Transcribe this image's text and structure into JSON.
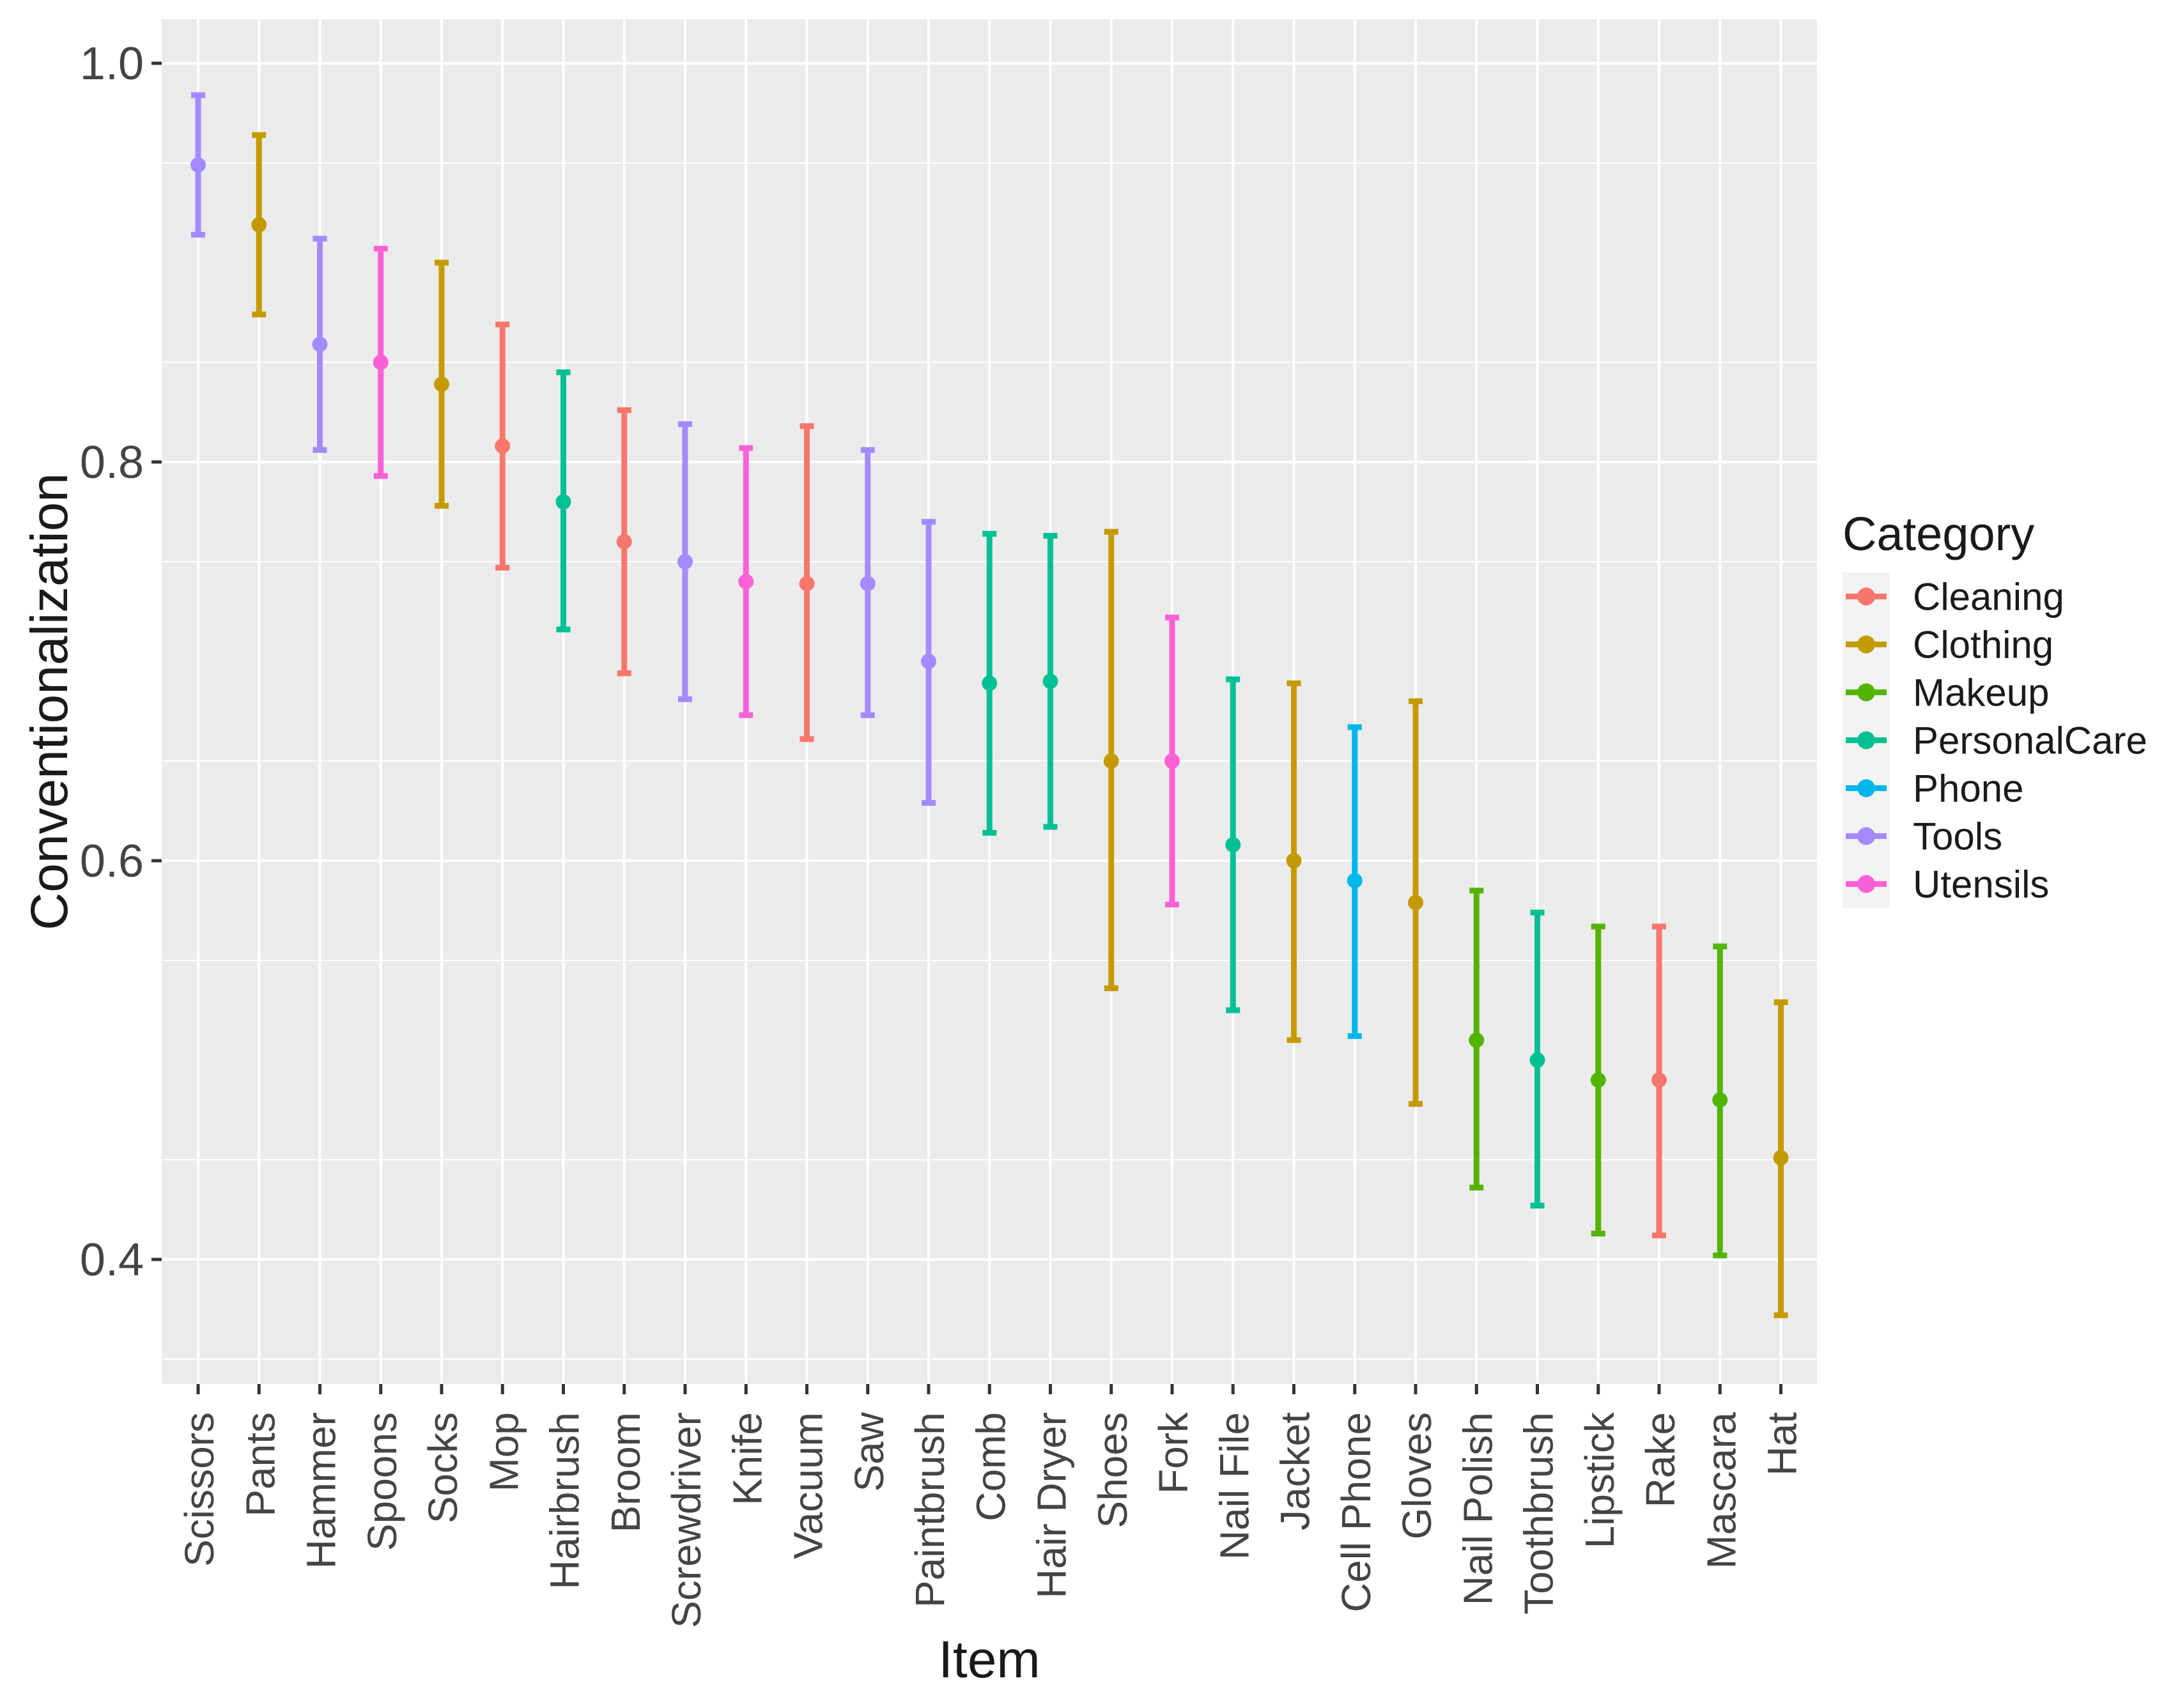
{
  "chart_data": {
    "type": "scatter",
    "subtype": "pointrange",
    "title": "",
    "xlabel": "Item",
    "ylabel": "Conventionalization",
    "legend_title": "Category",
    "legend_position": "right",
    "grid": true,
    "ylim": [
      0.3375,
      1.0221
    ],
    "yticks": [
      {
        "value": 1.0,
        "label": "1.0"
      },
      {
        "value": 0.8,
        "label": "0.8"
      },
      {
        "value": 0.6,
        "label": "0.6"
      },
      {
        "value": 0.4,
        "label": "0.4"
      }
    ],
    "yminor": [
      0.35,
      0.45,
      0.55,
      0.65,
      0.75,
      0.85,
      0.95
    ],
    "legend": [
      {
        "name": "Cleaning",
        "color": "#F8766D"
      },
      {
        "name": "Clothing",
        "color": "#C49A00"
      },
      {
        "name": "Makeup",
        "color": "#53B400"
      },
      {
        "name": "PersonalCare",
        "color": "#00C094"
      },
      {
        "name": "Phone",
        "color": "#00B6EB"
      },
      {
        "name": "Tools",
        "color": "#A58AFF"
      },
      {
        "name": "Utensils",
        "color": "#FB61D7"
      }
    ],
    "points": [
      {
        "item": "Scissors",
        "category": "Tools",
        "value": 0.949,
        "lo": 0.914,
        "hi": 0.984
      },
      {
        "item": "Pants",
        "category": "Clothing",
        "value": 0.919,
        "lo": 0.874,
        "hi": 0.964
      },
      {
        "item": "Hammer",
        "category": "Tools",
        "value": 0.859,
        "lo": 0.806,
        "hi": 0.912
      },
      {
        "item": "Spoons",
        "category": "Utensils",
        "value": 0.85,
        "lo": 0.793,
        "hi": 0.907
      },
      {
        "item": "Socks",
        "category": "Clothing",
        "value": 0.839,
        "lo": 0.778,
        "hi": 0.9
      },
      {
        "item": "Mop",
        "category": "Cleaning",
        "value": 0.808,
        "lo": 0.747,
        "hi": 0.869
      },
      {
        "item": "Hairbrush",
        "category": "PersonalCare",
        "value": 0.78,
        "lo": 0.716,
        "hi": 0.845
      },
      {
        "item": "Broom",
        "category": "Cleaning",
        "value": 0.76,
        "lo": 0.694,
        "hi": 0.826
      },
      {
        "item": "Screwdriver",
        "category": "Tools",
        "value": 0.75,
        "lo": 0.681,
        "hi": 0.819
      },
      {
        "item": "Knife",
        "category": "Utensils",
        "value": 0.74,
        "lo": 0.673,
        "hi": 0.807
      },
      {
        "item": "Vacuum",
        "category": "Cleaning",
        "value": 0.739,
        "lo": 0.661,
        "hi": 0.818
      },
      {
        "item": "Saw",
        "category": "Tools",
        "value": 0.739,
        "lo": 0.673,
        "hi": 0.806
      },
      {
        "item": "Paintbrush",
        "category": "Tools",
        "value": 0.7,
        "lo": 0.629,
        "hi": 0.77
      },
      {
        "item": "Comb",
        "category": "PersonalCare",
        "value": 0.689,
        "lo": 0.614,
        "hi": 0.764
      },
      {
        "item": "Hair Dryer",
        "category": "PersonalCare",
        "value": 0.69,
        "lo": 0.617,
        "hi": 0.763
      },
      {
        "item": "Shoes",
        "category": "Clothing",
        "value": 0.65,
        "lo": 0.536,
        "hi": 0.765
      },
      {
        "item": "Fork",
        "category": "Utensils",
        "value": 0.65,
        "lo": 0.578,
        "hi": 0.722
      },
      {
        "item": "Nail File",
        "category": "PersonalCare",
        "value": 0.608,
        "lo": 0.525,
        "hi": 0.691
      },
      {
        "item": "Jacket",
        "category": "Clothing",
        "value": 0.6,
        "lo": 0.51,
        "hi": 0.689
      },
      {
        "item": "Cell Phone",
        "category": "Phone",
        "value": 0.59,
        "lo": 0.512,
        "hi": 0.667
      },
      {
        "item": "Gloves",
        "category": "Clothing",
        "value": 0.579,
        "lo": 0.478,
        "hi": 0.68
      },
      {
        "item": "Nail Polish",
        "category": "Makeup",
        "value": 0.51,
        "lo": 0.436,
        "hi": 0.585
      },
      {
        "item": "Toothbrush",
        "category": "PersonalCare",
        "value": 0.5,
        "lo": 0.427,
        "hi": 0.574
      },
      {
        "item": "Lipstick",
        "category": "Makeup",
        "value": 0.49,
        "lo": 0.413,
        "hi": 0.567
      },
      {
        "item": "Rake",
        "category": "Cleaning",
        "value": 0.49,
        "lo": 0.412,
        "hi": 0.567
      },
      {
        "item": "Mascara",
        "category": "Makeup",
        "value": 0.48,
        "lo": 0.402,
        "hi": 0.557
      },
      {
        "item": "Hat",
        "category": "Clothing",
        "value": 0.451,
        "lo": 0.372,
        "hi": 0.529
      }
    ],
    "colors": {
      "panel_bg": "#EBEBEB",
      "gridline": "#FFFFFF",
      "legend_key_bg": "#F2F2F2",
      "tick_mark": "#333333",
      "tick_text": "#444444",
      "title_text": "#1A1A1A",
      "figure_bg": "#FFFFFF"
    }
  }
}
